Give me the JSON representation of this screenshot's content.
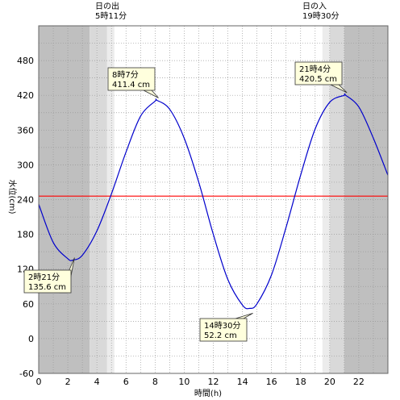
{
  "sun": {
    "sunrise_label": "日の出",
    "sunrise_time": "5時11分",
    "sunset_label": "日の入",
    "sunset_time": "19時30分"
  },
  "colors": {
    "night": "#bfbfbf",
    "twilight": "#d9d9d9",
    "dawn_edge": "#ececec",
    "day": "#ffffff",
    "curve": "#0000cc",
    "mean_line": "#ff0000",
    "callout_bg": "#ffffdd",
    "grid": "#999999"
  },
  "chart_data": {
    "type": "line",
    "xlabel": "時間(h)",
    "ylabel": "水位(cm)",
    "xlim": [
      0,
      24
    ],
    "ylim": [
      -60,
      540
    ],
    "x_ticks": [
      0,
      2,
      4,
      6,
      8,
      10,
      12,
      14,
      16,
      18,
      20,
      22
    ],
    "y_ticks": [
      -60,
      0,
      60,
      120,
      180,
      240,
      300,
      360,
      420,
      480
    ],
    "grid": true,
    "mean_level": 246,
    "sunrise_hour": 5.18,
    "sunset_hour": 19.5,
    "shading": [
      {
        "from": 0,
        "to": 3.5,
        "kind": "night"
      },
      {
        "from": 3.5,
        "to": 4.0,
        "kind": "twilight"
      },
      {
        "from": 4.0,
        "to": 4.7,
        "kind": "twilight"
      },
      {
        "from": 4.7,
        "to": 5.2,
        "kind": "dawn_edge"
      },
      {
        "from": 19.5,
        "to": 20.0,
        "kind": "dawn_edge"
      },
      {
        "from": 20.0,
        "to": 21.0,
        "kind": "twilight"
      },
      {
        "from": 21.0,
        "to": 24.0,
        "kind": "night"
      }
    ],
    "series": [
      {
        "x": [
          0,
          1,
          2,
          2.35,
          3,
          4,
          5,
          6,
          7,
          8,
          8.12,
          9,
          10,
          11,
          12,
          13,
          14,
          14.5,
          15,
          16,
          17,
          18,
          19,
          20,
          21,
          21.07,
          22,
          23,
          24
        ],
        "y": [
          232,
          166,
          138,
          135.6,
          144,
          186,
          250,
          322,
          384,
          410,
          411.4,
          396,
          346,
          270,
          180,
          102,
          58,
          52.2,
          60,
          110,
          192,
          282,
          362,
          408,
          420,
          420.5,
          400,
          346,
          282
        ]
      }
    ],
    "annotations": [
      {
        "time": "2時21分",
        "value": "135.6 cm",
        "x": 2.35,
        "y": 135.6
      },
      {
        "time": "8時7分",
        "value": "411.4 cm",
        "x": 8.12,
        "y": 411.4
      },
      {
        "time": "14時30分",
        "value": "52.2 cm",
        "x": 14.5,
        "y": 52.2
      },
      {
        "time": "21時4分",
        "value": "420.5 cm",
        "x": 21.07,
        "y": 420.5
      }
    ]
  }
}
